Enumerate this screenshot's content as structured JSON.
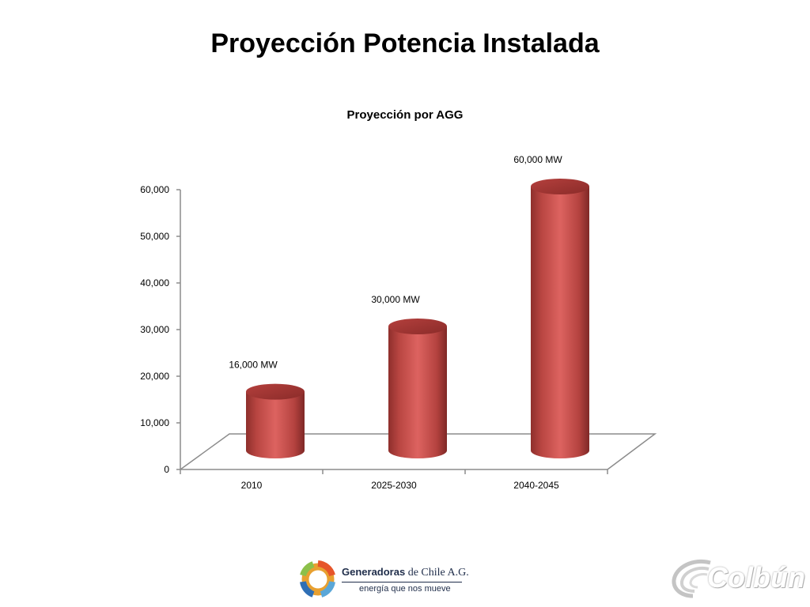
{
  "slide": {
    "title": "Proyección Potencia Instalada"
  },
  "chart_data": {
    "type": "bar",
    "title": "Proyección por AGG",
    "categories": [
      "2010",
      "2025-2030",
      "2040-2045"
    ],
    "series": [
      {
        "values": [
          16000,
          30000,
          60000
        ]
      }
    ],
    "data_labels": [
      "16,000 MW",
      "30,000 MW",
      "60,000 MW"
    ],
    "y_ticks": [
      "0",
      "10,000",
      "20,000",
      "30,000",
      "40,000",
      "50,000",
      "60,000"
    ],
    "ylim": [
      0,
      60000
    ],
    "xlabel": "",
    "ylabel": "",
    "grid": false,
    "style": "3d-cylinder",
    "bar_color": "#c0504d"
  },
  "footer": {
    "org_bold": "Generadoras",
    "org_rest": " de Chile A.G.",
    "tagline": "energía que nos mueve",
    "colbun_logo_text": "Colbún"
  },
  "icons": {
    "generadoras": "generadoras-ring-logo-icon",
    "colbun": "colbun-swoosh-logo-icon"
  }
}
